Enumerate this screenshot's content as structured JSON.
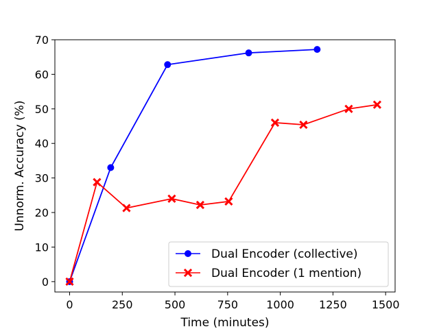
{
  "chart_data": {
    "type": "line",
    "title": "",
    "xlabel": "Time (minutes)",
    "ylabel": "Unnorm. Accuracy (%)",
    "xlim": [
      -70,
      1545
    ],
    "ylim": [
      -3,
      70
    ],
    "xticks": [
      0,
      250,
      500,
      750,
      1000,
      1250,
      1500
    ],
    "yticks": [
      0,
      10,
      20,
      30,
      40,
      50,
      60,
      70
    ],
    "grid": false,
    "legend_position": "lower-right",
    "series": [
      {
        "name": "Dual Encoder (collective)",
        "color": "#0000ff",
        "marker": "circle",
        "points": [
          [
            0,
            0
          ],
          [
            195,
            33
          ],
          [
            465,
            62.8
          ],
          [
            850,
            66.2
          ],
          [
            1175,
            67.2
          ]
        ]
      },
      {
        "name": "Dual Encoder (1 mention)",
        "color": "#ff0000",
        "marker": "x",
        "points": [
          [
            0,
            0
          ],
          [
            130,
            28.8
          ],
          [
            270,
            21.3
          ],
          [
            485,
            24
          ],
          [
            620,
            22.2
          ],
          [
            755,
            23.2
          ],
          [
            975,
            46
          ],
          [
            1110,
            45.4
          ],
          [
            1325,
            50
          ],
          [
            1460,
            51.2
          ]
        ]
      }
    ]
  }
}
